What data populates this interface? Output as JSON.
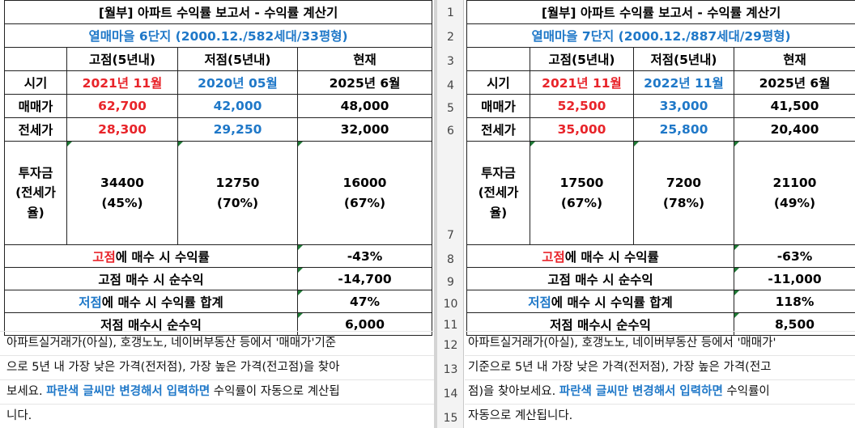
{
  "left": {
    "title": "[월부] 아파트 수익률 보고서 - 수익률 계산기",
    "complex": "열매마을 6단지 (2000.12./582세대/33평형)",
    "headers": [
      "고점(5년내)",
      "저점(5년내)",
      "현재"
    ],
    "rows": {
      "period": {
        "label": "시기",
        "high": "2021년 11월",
        "low": "2020년 05월",
        "now": "2025년 6월"
      },
      "sale": {
        "label": "매매가",
        "high": "62,700",
        "low": "42,000",
        "now": "48,000"
      },
      "lease": {
        "label": "전세가",
        "high": "28,300",
        "low": "29,250",
        "now": "32,000"
      },
      "invest": {
        "label_1": "투자금",
        "label_2": "(전세가",
        "label_3": "율)",
        "high": "34400",
        "high_rate": "(45%)",
        "low": "12750",
        "low_rate": "(70%)",
        "now": "16000",
        "now_rate": "(67%)"
      }
    },
    "summary": [
      {
        "hl": "고점",
        "rest": "에 매수 시 수익률",
        "value": "-43%"
      },
      {
        "hl": "",
        "rest": "고점 매수 시 순수익",
        "value": "-14,700"
      },
      {
        "hl": "저점",
        "rest": "에 매수 시 수익률 합계",
        "value": "47%"
      },
      {
        "hl": "",
        "rest": "저점 매수시 순수익",
        "value": "6,000"
      }
    ],
    "notes": [
      {
        "a": "아파트실거래가(아실), 호갱노노, 네이버부동산 등에서 '매매가'기준",
        "b": "",
        "c": ""
      },
      {
        "a": "으로 5년 내 가장 낮은 가격(전저점), 가장 높은 가격(전고점)을 찾아",
        "b": "",
        "c": ""
      },
      {
        "a": "보세요. ",
        "b": "파란색 글씨만 변경해서 입력하면",
        "c": " 수익률이 자동으로 계산됩"
      },
      {
        "a": "니다.",
        "b": "",
        "c": ""
      }
    ]
  },
  "right": {
    "title": "[월부] 아파트 수익률 보고서 - 수익률 계산기",
    "complex": "열매마을 7단지 (2000.12./887세대/29평형)",
    "headers": [
      "고점(5년내)",
      "저점(5년내)",
      "현재"
    ],
    "rows": {
      "period": {
        "label": "시기",
        "high": "2021년 11월",
        "low": "2022년 11월",
        "now": "2025년 6월"
      },
      "sale": {
        "label": "매매가",
        "high": "52,500",
        "low": "33,000",
        "now": "41,500"
      },
      "lease": {
        "label": "전세가",
        "high": "35,000",
        "low": "25,800",
        "now": "20,400"
      },
      "invest": {
        "label_1": "투자금",
        "label_2": "(전세가",
        "label_3": "율)",
        "high": "17500",
        "high_rate": "(67%)",
        "low": "7200",
        "low_rate": "(78%)",
        "now": "21100",
        "now_rate": "(49%)"
      }
    },
    "summary": [
      {
        "hl": "고점",
        "rest": "에 매수 시 수익률",
        "value": "-63%"
      },
      {
        "hl": "",
        "rest": "고점 매수 시 순수익",
        "value": "-11,000"
      },
      {
        "hl": "저점",
        "rest": "에 매수 시 수익률 합계",
        "value": "118%"
      },
      {
        "hl": "",
        "rest": "저점 매수시 순수익",
        "value": "8,500"
      }
    ],
    "notes": [
      {
        "a": "아파트실거래가(아실), 호갱노노, 네이버부동산 등에서 '매매가'",
        "b": "",
        "c": ""
      },
      {
        "a": "기준으로 5년 내 가장 낮은 가격(전저점), 가장 높은 가격(전고",
        "b": "",
        "c": ""
      },
      {
        "a": "점)을 찾아보세요. ",
        "b": "파란색 글씨만 변경해서 입력하면",
        "c": " 수익률이"
      },
      {
        "a": "자동으로 계산됩니다.",
        "b": "",
        "c": ""
      }
    ]
  },
  "row_numbers": [
    "1",
    "2",
    "3",
    "4",
    "5",
    "6",
    "7",
    "8",
    "9",
    "10",
    "11",
    "12",
    "13",
    "14",
    "15"
  ],
  "colors": {
    "red": "#e8242a",
    "blue": "#1f78c8",
    "marker": "#1e7a35"
  }
}
